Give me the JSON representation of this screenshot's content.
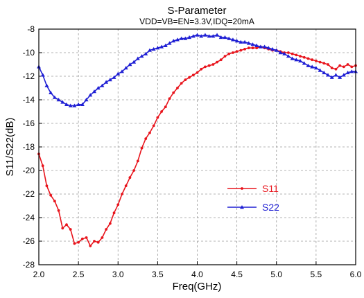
{
  "chart_data": {
    "type": "line",
    "title": "S-Parameter",
    "subtitle": "VDD=VB=EN=3.3V,IDQ=20mA",
    "xlabel": "Freq(GHz)",
    "ylabel": "S11/S22(dB)",
    "xlim": [
      2.0,
      6.0
    ],
    "ylim": [
      -28,
      -8
    ],
    "x_ticks": [
      "2.0",
      "2.5",
      "3.0",
      "3.5",
      "4.0",
      "4.5",
      "5.0",
      "5.5",
      "6.0"
    ],
    "y_ticks": [
      "-8",
      "-10",
      "-12",
      "-14",
      "-16",
      "-18",
      "-20",
      "-22",
      "-24",
      "-26",
      "-28"
    ],
    "grid": true,
    "legend_position": "lower-right",
    "x": [
      2.0,
      2.05,
      2.1,
      2.15,
      2.2,
      2.25,
      2.3,
      2.35,
      2.4,
      2.45,
      2.5,
      2.55,
      2.6,
      2.65,
      2.7,
      2.75,
      2.8,
      2.85,
      2.9,
      2.95,
      3.0,
      3.05,
      3.1,
      3.15,
      3.2,
      3.25,
      3.3,
      3.35,
      3.4,
      3.45,
      3.5,
      3.55,
      3.6,
      3.65,
      3.7,
      3.75,
      3.8,
      3.85,
      3.9,
      3.95,
      4.0,
      4.05,
      4.1,
      4.15,
      4.2,
      4.25,
      4.3,
      4.35,
      4.4,
      4.45,
      4.5,
      4.55,
      4.6,
      4.65,
      4.7,
      4.75,
      4.8,
      4.85,
      4.9,
      4.95,
      5.0,
      5.05,
      5.1,
      5.15,
      5.2,
      5.25,
      5.3,
      5.35,
      5.4,
      5.45,
      5.5,
      5.55,
      5.6,
      5.65,
      5.7,
      5.75,
      5.8,
      5.85,
      5.9,
      5.95,
      6.0
    ],
    "series": [
      {
        "name": "S11",
        "color": "#e8141c",
        "marker": "circle",
        "values": [
          -18.6,
          -19.6,
          -21.3,
          -22.1,
          -22.6,
          -23.4,
          -24.9,
          -24.6,
          -25.0,
          -26.2,
          -26.1,
          -25.8,
          -25.7,
          -26.4,
          -26.0,
          -26.1,
          -25.7,
          -25.0,
          -24.5,
          -23.6,
          -22.9,
          -22.0,
          -21.3,
          -20.6,
          -20.0,
          -19.2,
          -18.1,
          -17.3,
          -16.8,
          -16.2,
          -15.5,
          -15.0,
          -14.6,
          -13.9,
          -13.4,
          -13.0,
          -12.6,
          -12.3,
          -12.1,
          -11.9,
          -11.7,
          -11.4,
          -11.2,
          -11.1,
          -11.0,
          -10.8,
          -10.6,
          -10.3,
          -10.1,
          -10.0,
          -9.9,
          -9.8,
          -9.7,
          -9.6,
          -9.6,
          -9.6,
          -9.5,
          -9.6,
          -9.7,
          -9.8,
          -9.8,
          -9.9,
          -10.0,
          -10.0,
          -10.1,
          -10.2,
          -10.3,
          -10.4,
          -10.5,
          -10.6,
          -10.7,
          -10.8,
          -10.9,
          -11.0,
          -11.3,
          -11.4,
          -11.1,
          -11.2,
          -11.0,
          -11.2,
          -11.1
        ]
      },
      {
        "name": "S22",
        "color": "#1f1fd4",
        "marker": "triangle",
        "values": [
          -11.2,
          -11.9,
          -12.8,
          -13.4,
          -13.8,
          -14.0,
          -14.2,
          -14.4,
          -14.5,
          -14.5,
          -14.4,
          -14.4,
          -14.0,
          -13.6,
          -13.3,
          -13.0,
          -12.8,
          -12.5,
          -12.3,
          -12.1,
          -11.8,
          -11.6,
          -11.3,
          -11.0,
          -10.8,
          -10.5,
          -10.3,
          -10.1,
          -9.8,
          -9.7,
          -9.6,
          -9.5,
          -9.4,
          -9.2,
          -9.0,
          -8.9,
          -8.8,
          -8.8,
          -8.7,
          -8.6,
          -8.5,
          -8.6,
          -8.5,
          -8.6,
          -8.6,
          -8.5,
          -8.7,
          -8.7,
          -8.8,
          -8.9,
          -9.0,
          -9.1,
          -9.1,
          -9.2,
          -9.3,
          -9.4,
          -9.5,
          -9.5,
          -9.6,
          -9.7,
          -9.8,
          -10.0,
          -10.1,
          -10.3,
          -10.5,
          -10.6,
          -10.7,
          -10.9,
          -11.1,
          -11.2,
          -11.3,
          -11.5,
          -11.7,
          -11.9,
          -12.1,
          -11.9,
          -12.1,
          -11.9,
          -11.7,
          -11.6,
          -11.6
        ]
      }
    ]
  }
}
